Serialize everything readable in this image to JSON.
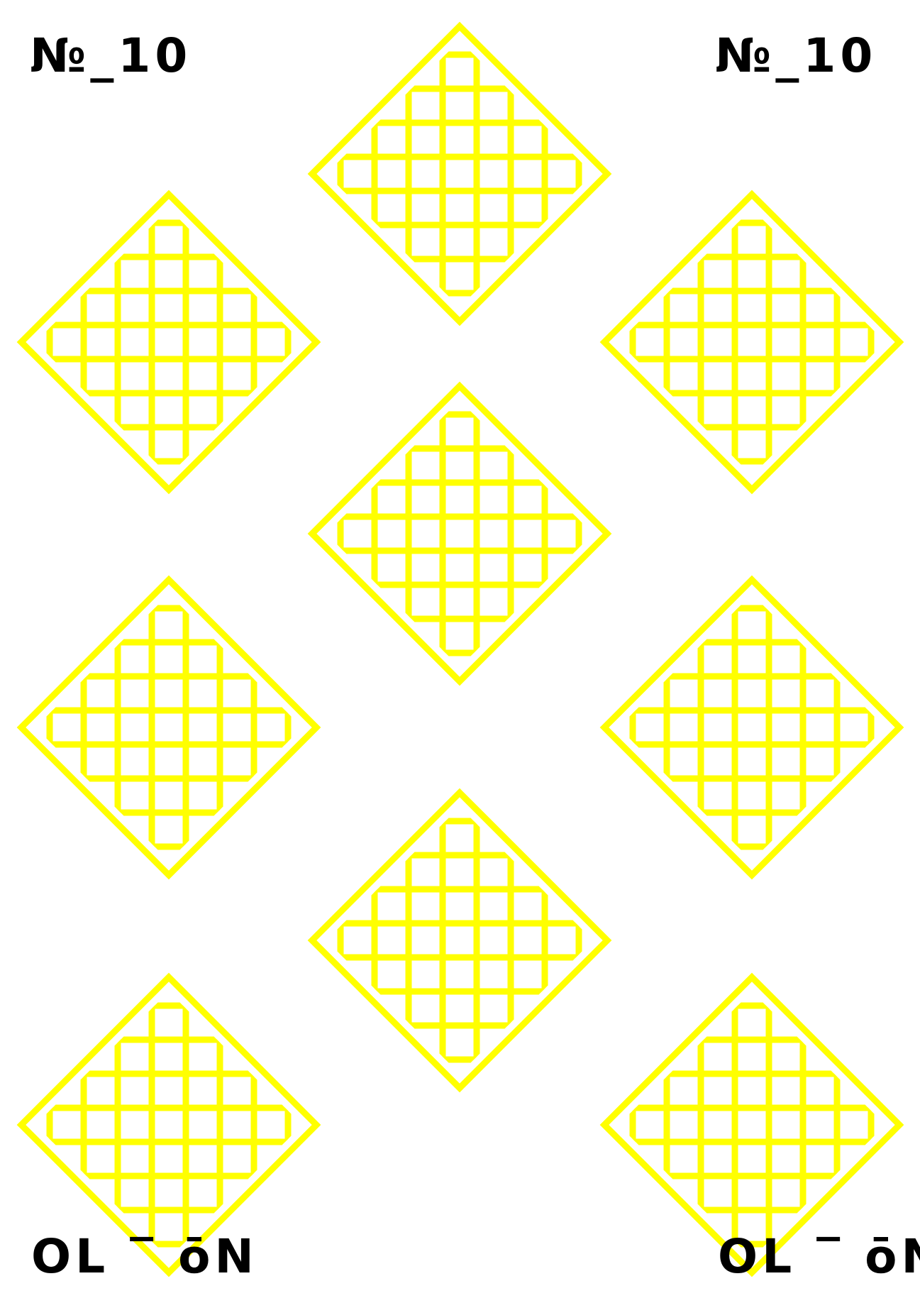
{
  "corners": {
    "top_left": "№_10",
    "top_right": "№_10",
    "bottom_left": "OL ‾ ōN",
    "bottom_right": "OL ‾ ōN"
  },
  "colors": {
    "background": "#ffffff",
    "pattern": "#ffff00",
    "text": "#000000"
  },
  "pattern": {
    "shape": "diamond-lattice",
    "count": 9
  }
}
